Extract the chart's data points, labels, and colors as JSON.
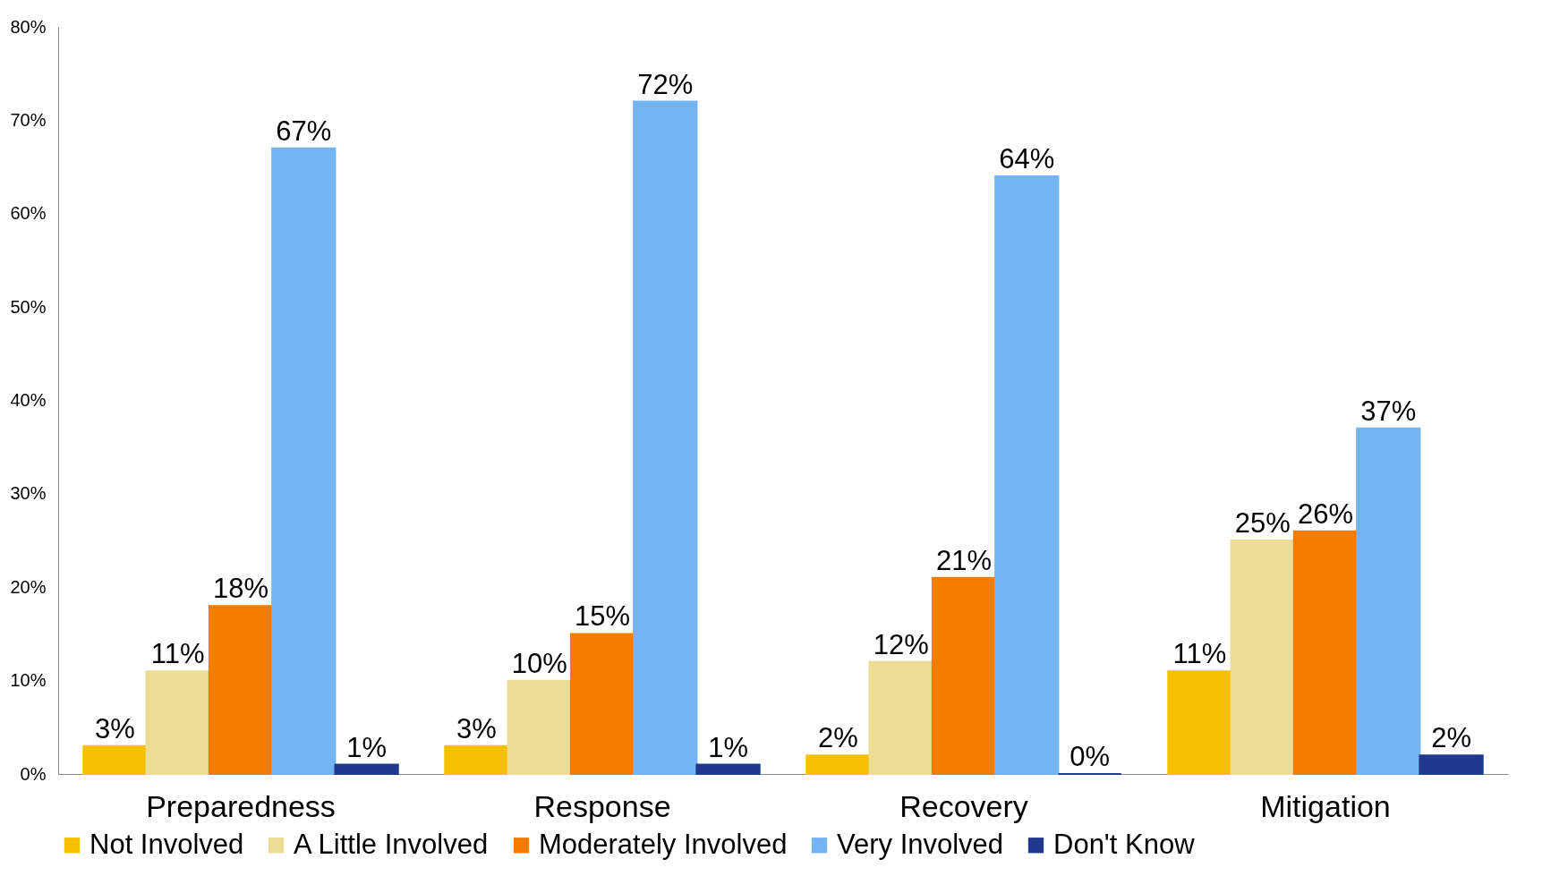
{
  "chart_data": {
    "type": "bar",
    "categories": [
      "Preparedness",
      "Response",
      "Recovery",
      "Mitigation"
    ],
    "series": [
      {
        "name": "Not Involved",
        "color": "#f5c000",
        "values": [
          3,
          3,
          2,
          11
        ],
        "value_labels": [
          "3%",
          "3%",
          "2%",
          "11%"
        ]
      },
      {
        "name": "A Little Involved",
        "color": "#ecdc94",
        "values": [
          11,
          10,
          12,
          25
        ],
        "value_labels": [
          "11%",
          "10%",
          "12%",
          "25%"
        ]
      },
      {
        "name": "Moderately Involved",
        "color": "#f47c00",
        "values": [
          18,
          15,
          21,
          26
        ],
        "value_labels": [
          "18%",
          "15%",
          "21%",
          "26%"
        ]
      },
      {
        "name": "Very Involved",
        "color": "#74b4f2",
        "values": [
          67,
          72,
          64,
          37
        ],
        "value_labels": [
          "67%",
          "72%",
          "64%",
          "37%"
        ]
      },
      {
        "name": "Don't Know",
        "color": "#1f3a8c",
        "values": [
          1,
          1,
          0,
          2
        ],
        "value_labels": [
          "1%",
          "1%",
          "0%",
          "2%"
        ]
      }
    ],
    "ylim": [
      0,
      80
    ],
    "yticks": [
      {
        "value": 0,
        "label": "0%"
      },
      {
        "value": 10,
        "label": "10%"
      },
      {
        "value": 20,
        "label": "20%"
      },
      {
        "value": 30,
        "label": "30%"
      },
      {
        "value": 40,
        "label": "40%"
      },
      {
        "value": 50,
        "label": "50%"
      },
      {
        "value": 60,
        "label": "60%"
      },
      {
        "value": 70,
        "label": "70%"
      },
      {
        "value": 80,
        "label": "80%"
      }
    ],
    "grid": false,
    "legend": "bottom"
  }
}
